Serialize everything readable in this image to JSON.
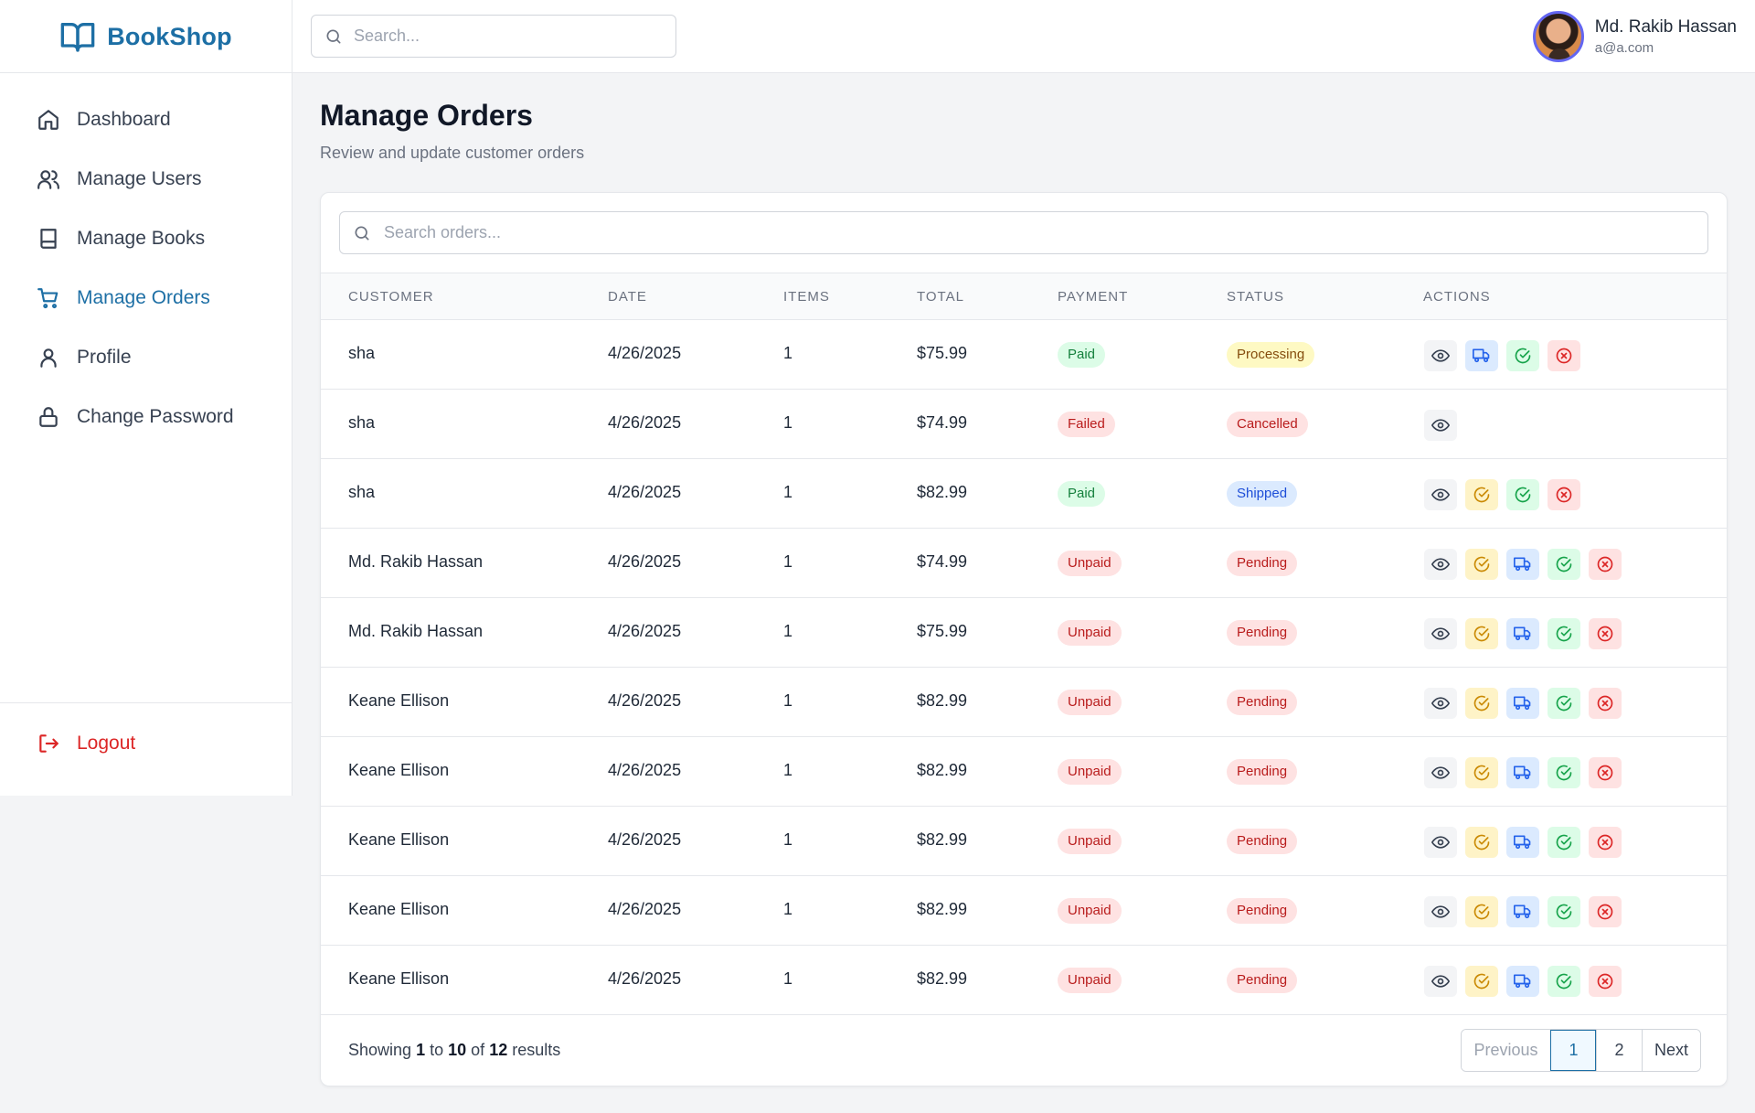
{
  "brand": {
    "name": "BookShop"
  },
  "header": {
    "search_placeholder": "Search..."
  },
  "user": {
    "name": "Md. Rakib Hassan",
    "email": "a@a.com"
  },
  "sidebar": {
    "items": [
      {
        "label": "Dashboard",
        "icon": "home-icon"
      },
      {
        "label": "Manage Users",
        "icon": "users-icon"
      },
      {
        "label": "Manage Books",
        "icon": "book-icon"
      },
      {
        "label": "Manage Orders",
        "icon": "cart-icon",
        "active": true
      },
      {
        "label": "Profile",
        "icon": "user-icon"
      },
      {
        "label": "Change Password",
        "icon": "lock-icon"
      }
    ],
    "logout_label": "Logout"
  },
  "page": {
    "title": "Manage Orders",
    "subtitle": "Review and update customer orders"
  },
  "orders": {
    "search_placeholder": "Search orders...",
    "columns": [
      "CUSTOMER",
      "DATE",
      "ITEMS",
      "TOTAL",
      "PAYMENT",
      "STATUS",
      "ACTIONS"
    ],
    "rows": [
      {
        "customer": "sha",
        "date": "4/26/2025",
        "items": "1",
        "total": "$75.99",
        "payment": "Paid",
        "status": "Processing",
        "actions": [
          "view",
          "ship",
          "deliver",
          "cancel"
        ]
      },
      {
        "customer": "sha",
        "date": "4/26/2025",
        "items": "1",
        "total": "$74.99",
        "payment": "Failed",
        "status": "Cancelled",
        "actions": [
          "view"
        ]
      },
      {
        "customer": "sha",
        "date": "4/26/2025",
        "items": "1",
        "total": "$82.99",
        "payment": "Paid",
        "status": "Shipped",
        "actions": [
          "view",
          "confirm",
          "deliver",
          "cancel"
        ]
      },
      {
        "customer": "Md. Rakib Hassan",
        "date": "4/26/2025",
        "items": "1",
        "total": "$74.99",
        "payment": "Unpaid",
        "status": "Pending",
        "actions": [
          "view",
          "confirm",
          "ship",
          "deliver",
          "cancel"
        ]
      },
      {
        "customer": "Md. Rakib Hassan",
        "date": "4/26/2025",
        "items": "1",
        "total": "$75.99",
        "payment": "Unpaid",
        "status": "Pending",
        "actions": [
          "view",
          "confirm",
          "ship",
          "deliver",
          "cancel"
        ]
      },
      {
        "customer": "Keane Ellison",
        "date": "4/26/2025",
        "items": "1",
        "total": "$82.99",
        "payment": "Unpaid",
        "status": "Pending",
        "actions": [
          "view",
          "confirm",
          "ship",
          "deliver",
          "cancel"
        ]
      },
      {
        "customer": "Keane Ellison",
        "date": "4/26/2025",
        "items": "1",
        "total": "$82.99",
        "payment": "Unpaid",
        "status": "Pending",
        "actions": [
          "view",
          "confirm",
          "ship",
          "deliver",
          "cancel"
        ]
      },
      {
        "customer": "Keane Ellison",
        "date": "4/26/2025",
        "items": "1",
        "total": "$82.99",
        "payment": "Unpaid",
        "status": "Pending",
        "actions": [
          "view",
          "confirm",
          "ship",
          "deliver",
          "cancel"
        ]
      },
      {
        "customer": "Keane Ellison",
        "date": "4/26/2025",
        "items": "1",
        "total": "$82.99",
        "payment": "Unpaid",
        "status": "Pending",
        "actions": [
          "view",
          "confirm",
          "ship",
          "deliver",
          "cancel"
        ]
      },
      {
        "customer": "Keane Ellison",
        "date": "4/26/2025",
        "items": "1",
        "total": "$82.99",
        "payment": "Unpaid",
        "status": "Pending",
        "actions": [
          "view",
          "confirm",
          "ship",
          "deliver",
          "cancel"
        ]
      }
    ]
  },
  "pagination": {
    "showing_prefix": "Showing",
    "from": "1",
    "to_word": "to",
    "to": "10",
    "of_word": "of",
    "total": "12",
    "results_word": "results",
    "prev_label": "Previous",
    "pages": [
      "1",
      "2"
    ],
    "current_page": "1",
    "next_label": "Next"
  },
  "badge_colors": {
    "Paid": {
      "bg": "#dcfce7",
      "fg": "#15803d"
    },
    "Failed": {
      "bg": "#fee2e2",
      "fg": "#b91c1c"
    },
    "Unpaid": {
      "bg": "#fee2e2",
      "fg": "#b91c1c"
    },
    "Processing": {
      "bg": "#fef9c3",
      "fg": "#854d0e"
    },
    "Cancelled": {
      "bg": "#fee2e2",
      "fg": "#b91c1c"
    },
    "Shipped": {
      "bg": "#dbeafe",
      "fg": "#1d4ed8"
    },
    "Pending": {
      "bg": "#fee2e2",
      "fg": "#b91c1c"
    }
  },
  "accent_color": "#1d6fa5"
}
